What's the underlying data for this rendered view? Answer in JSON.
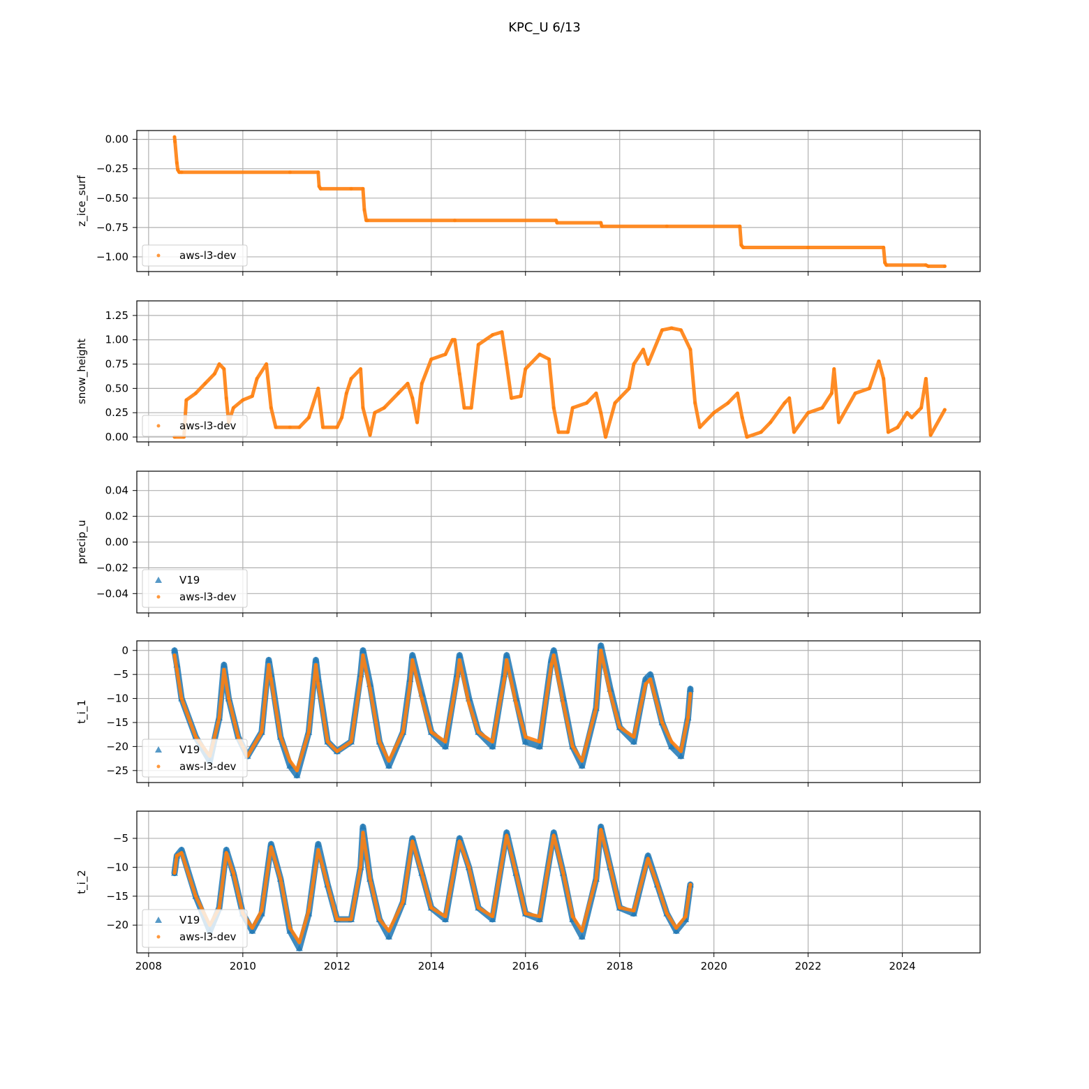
{
  "figure": {
    "title": "KPC_U 6/13",
    "colors": {
      "v19": "#1f77b4",
      "aws": "#ff7f0e",
      "grid": "#b0b0b0",
      "axis": "#000000"
    }
  },
  "chart_data": [
    {
      "type": "scatter",
      "ylabel": "z_ice_surf",
      "xlim": [
        2007.75,
        2025.65
      ],
      "ylim": [
        -1.125,
        0.075
      ],
      "xticks": [
        2008,
        2010,
        2012,
        2014,
        2016,
        2018,
        2020,
        2022,
        2024
      ],
      "xticklabels": [],
      "yticks": [
        -1.0,
        -0.75,
        -0.5,
        -0.25,
        0.0
      ],
      "yticklabels": [
        "−1.00",
        "−0.75",
        "−0.50",
        "−0.25",
        "0.00"
      ],
      "grid": true,
      "legend": {
        "placement": "lower-left",
        "entries": [
          "aws-l3-dev"
        ]
      },
      "series": [
        {
          "name": "aws-l3-dev",
          "marker": "dot",
          "color": "#ff7f0e",
          "x": [
            2008.55,
            2008.56,
            2008.6,
            2008.62,
            2008.65,
            2008.7,
            2011.0,
            2011.6,
            2011.62,
            2011.65,
            2012.3,
            2012.55,
            2012.58,
            2012.62,
            2012.65,
            2014.5,
            2016.65,
            2016.67,
            2017.6,
            2017.62,
            2019.0,
            2020.55,
            2020.58,
            2020.62,
            2022.0,
            2023.6,
            2023.63,
            2023.66,
            2024.5,
            2024.55,
            2024.9
          ],
          "y": [
            0.02,
            -0.02,
            -0.2,
            -0.26,
            -0.28,
            -0.28,
            -0.28,
            -0.28,
            -0.4,
            -0.42,
            -0.42,
            -0.42,
            -0.6,
            -0.69,
            -0.69,
            -0.69,
            -0.69,
            -0.71,
            -0.71,
            -0.74,
            -0.74,
            -0.74,
            -0.9,
            -0.92,
            -0.92,
            -0.92,
            -1.05,
            -1.07,
            -1.07,
            -1.08,
            -1.08
          ]
        }
      ]
    },
    {
      "type": "scatter",
      "ylabel": "snow_height",
      "xlim": [
        2007.75,
        2025.65
      ],
      "ylim": [
        -0.05,
        1.4
      ],
      "xticks": [
        2008,
        2010,
        2012,
        2014,
        2016,
        2018,
        2020,
        2022,
        2024
      ],
      "xticklabels": [],
      "yticks": [
        0.0,
        0.25,
        0.5,
        0.75,
        1.0,
        1.25
      ],
      "yticklabels": [
        "0.00",
        "0.25",
        "0.50",
        "0.75",
        "1.00",
        "1.25"
      ],
      "grid": true,
      "legend": {
        "placement": "lower-left",
        "entries": [
          "aws-l3-dev"
        ]
      },
      "series": [
        {
          "name": "aws-l3-dev",
          "marker": "dot",
          "color": "#ff7f0e",
          "x": [
            2008.55,
            2008.75,
            2008.8,
            2009.0,
            2009.2,
            2009.4,
            2009.5,
            2009.6,
            2009.65,
            2009.7,
            2009.8,
            2010.0,
            2010.2,
            2010.3,
            2010.5,
            2010.6,
            2010.7,
            2011.0,
            2011.2,
            2011.4,
            2011.6,
            2011.7,
            2012.0,
            2012.1,
            2012.2,
            2012.3,
            2012.5,
            2012.55,
            2012.7,
            2012.8,
            2013.0,
            2013.3,
            2013.5,
            2013.6,
            2013.7,
            2013.8,
            2014.0,
            2014.3,
            2014.45,
            2014.5,
            2014.6,
            2014.7,
            2014.85,
            2015.0,
            2015.3,
            2015.5,
            2015.6,
            2015.7,
            2015.9,
            2016.0,
            2016.3,
            2016.5,
            2016.6,
            2016.7,
            2016.9,
            2017.0,
            2017.3,
            2017.5,
            2017.6,
            2017.7,
            2017.9,
            2018.0,
            2018.2,
            2018.3,
            2018.5,
            2018.6,
            2018.9,
            2019.1,
            2019.3,
            2019.5,
            2019.6,
            2019.7,
            2020.0,
            2020.3,
            2020.5,
            2020.6,
            2020.7,
            2021.0,
            2021.2,
            2021.5,
            2021.6,
            2021.7,
            2022.0,
            2022.3,
            2022.5,
            2022.55,
            2022.65,
            2023.0,
            2023.3,
            2023.5,
            2023.6,
            2023.7,
            2023.9,
            2024.1,
            2024.2,
            2024.3,
            2024.4,
            2024.5,
            2024.6,
            2024.9
          ],
          "y": [
            0.0,
            0.0,
            0.38,
            0.45,
            0.55,
            0.65,
            0.75,
            0.7,
            0.4,
            0.15,
            0.3,
            0.38,
            0.42,
            0.6,
            0.75,
            0.3,
            0.1,
            0.1,
            0.1,
            0.2,
            0.5,
            0.1,
            0.1,
            0.2,
            0.45,
            0.6,
            0.7,
            0.3,
            0.02,
            0.25,
            0.3,
            0.45,
            0.55,
            0.4,
            0.15,
            0.55,
            0.8,
            0.85,
            1.0,
            1.0,
            0.65,
            0.3,
            0.3,
            0.95,
            1.05,
            1.08,
            0.75,
            0.4,
            0.42,
            0.7,
            0.85,
            0.8,
            0.3,
            0.05,
            0.05,
            0.3,
            0.35,
            0.45,
            0.25,
            0.0,
            0.35,
            0.4,
            0.5,
            0.75,
            0.9,
            0.75,
            1.1,
            1.12,
            1.1,
            0.9,
            0.35,
            0.1,
            0.25,
            0.35,
            0.45,
            0.2,
            0.0,
            0.05,
            0.15,
            0.35,
            0.4,
            0.05,
            0.25,
            0.3,
            0.45,
            0.7,
            0.15,
            0.45,
            0.5,
            0.78,
            0.6,
            0.05,
            0.1,
            0.25,
            0.2,
            0.25,
            0.3,
            0.6,
            0.02,
            0.28
          ]
        }
      ]
    },
    {
      "type": "scatter",
      "ylabel": "precip_u",
      "xlim": [
        2007.75,
        2025.65
      ],
      "ylim": [
        -0.055,
        0.055
      ],
      "xticks": [
        2008,
        2010,
        2012,
        2014,
        2016,
        2018,
        2020,
        2022,
        2024
      ],
      "xticklabels": [],
      "yticks": [
        -0.04,
        -0.02,
        0.0,
        0.02,
        0.04
      ],
      "yticklabels": [
        "−0.04",
        "−0.02",
        "0.00",
        "0.02",
        "0.04"
      ],
      "grid": true,
      "legend": {
        "placement": "lower-left",
        "entries": [
          "V19",
          "aws-l3-dev"
        ]
      },
      "series": [
        {
          "name": "V19",
          "marker": "triangle",
          "color": "#1f77b4",
          "x": [],
          "y": []
        },
        {
          "name": "aws-l3-dev",
          "marker": "dot",
          "color": "#ff7f0e",
          "x": [],
          "y": []
        }
      ]
    },
    {
      "type": "scatter",
      "ylabel": "t_i_1",
      "xlim": [
        2007.75,
        2025.65
      ],
      "ylim": [
        -27.5,
        2.0
      ],
      "xticks": [
        2008,
        2010,
        2012,
        2014,
        2016,
        2018,
        2020,
        2022,
        2024
      ],
      "xticklabels": [],
      "yticks": [
        -25,
        -20,
        -15,
        -10,
        -5,
        0
      ],
      "yticklabels": [
        "−25",
        "−20",
        "−15",
        "−10",
        "−5",
        "0"
      ],
      "grid": true,
      "legend": {
        "placement": "lower-left",
        "entries": [
          "V19",
          "aws-l3-dev"
        ]
      },
      "series": [
        {
          "name": "V19",
          "marker": "triangle",
          "color": "#1f77b4",
          "x": [
            2008.55,
            2008.6,
            2008.7,
            2009.0,
            2009.3,
            2009.5,
            2009.6,
            2009.7,
            2009.9,
            2010.1,
            2010.4,
            2010.55,
            2010.6,
            2010.8,
            2011.0,
            2011.15,
            2011.4,
            2011.55,
            2011.6,
            2011.8,
            2012.0,
            2012.3,
            2012.5,
            2012.55,
            2012.7,
            2012.9,
            2013.1,
            2013.4,
            2013.55,
            2013.6,
            2013.8,
            2014.0,
            2014.3,
            2014.55,
            2014.6,
            2014.8,
            2015.0,
            2015.3,
            2015.55,
            2015.6,
            2015.8,
            2016.0,
            2016.3,
            2016.55,
            2016.6,
            2016.8,
            2017.0,
            2017.2,
            2017.5,
            2017.6,
            2017.8,
            2018.0,
            2018.3,
            2018.55,
            2018.65,
            2018.9,
            2019.1,
            2019.3,
            2019.45,
            2019.5
          ],
          "y": [
            0,
            -3,
            -10,
            -18,
            -23,
            -14,
            -3,
            -10,
            -18,
            -22,
            -17,
            -2,
            -5,
            -18,
            -24,
            -26,
            -17,
            -2,
            -6,
            -19,
            -21,
            -19,
            -5,
            0,
            -7,
            -19,
            -24,
            -17,
            -6,
            -1,
            -9,
            -17,
            -20,
            -5,
            -1,
            -10,
            -17,
            -20,
            -5,
            -1,
            -10,
            -19,
            -20,
            -2,
            0,
            -10,
            -20,
            -24,
            -12,
            1,
            -8,
            -16,
            -19,
            -6,
            -5,
            -15,
            -20,
            -22,
            -14,
            -8
          ]
        },
        {
          "name": "aws-l3-dev",
          "marker": "dot",
          "color": "#ff7f0e",
          "x": [
            2008.55,
            2008.6,
            2008.7,
            2009.0,
            2009.3,
            2009.5,
            2009.6,
            2009.7,
            2009.9,
            2010.1,
            2010.4,
            2010.55,
            2010.6,
            2010.8,
            2011.0,
            2011.15,
            2011.4,
            2011.55,
            2011.6,
            2011.8,
            2012.0,
            2012.3,
            2012.5,
            2012.55,
            2012.7,
            2012.9,
            2013.1,
            2013.4,
            2013.55,
            2013.6,
            2013.8,
            2014.0,
            2014.3,
            2014.55,
            2014.6,
            2014.8,
            2015.0,
            2015.3,
            2015.55,
            2015.6,
            2015.8,
            2016.0,
            2016.3,
            2016.55,
            2016.6,
            2016.8,
            2017.0,
            2017.2,
            2017.5,
            2017.6,
            2017.8,
            2018.0,
            2018.3,
            2018.55,
            2018.65,
            2018.9,
            2019.1,
            2019.3,
            2019.45,
            2019.5
          ],
          "y": [
            -1,
            -4,
            -10,
            -18,
            -22,
            -14,
            -4,
            -10,
            -18,
            -22,
            -17,
            -3,
            -6,
            -18,
            -23,
            -25,
            -17,
            -3,
            -7,
            -19,
            -21,
            -19,
            -6,
            -1,
            -8,
            -19,
            -23,
            -17,
            -7,
            -2,
            -10,
            -17,
            -19,
            -6,
            -2,
            -11,
            -17,
            -19,
            -6,
            -2,
            -11,
            -18,
            -19,
            -3,
            -1,
            -11,
            -20,
            -23,
            -12,
            0,
            -9,
            -16,
            -18,
            -7,
            -6,
            -15,
            -19,
            -21,
            -14,
            -9
          ]
        }
      ]
    },
    {
      "type": "scatter",
      "ylabel": "t_i_2",
      "xlabel": "",
      "xlim": [
        2007.75,
        2025.65
      ],
      "ylim": [
        -24.8,
        -0.3
      ],
      "xticks": [
        2008,
        2010,
        2012,
        2014,
        2016,
        2018,
        2020,
        2022,
        2024
      ],
      "xticklabels": [
        "2008",
        "2010",
        "2012",
        "2014",
        "2016",
        "2018",
        "2020",
        "2022",
        "2024"
      ],
      "yticks": [
        -20,
        -15,
        -10,
        -5
      ],
      "yticklabels": [
        "−20",
        "−15",
        "−10",
        "−5"
      ],
      "grid": true,
      "legend": {
        "placement": "lower-left",
        "entries": [
          "V19",
          "aws-l3-dev"
        ]
      },
      "series": [
        {
          "name": "V19",
          "marker": "triangle",
          "color": "#1f77b4",
          "x": [
            2008.55,
            2008.6,
            2008.7,
            2009.0,
            2009.3,
            2009.5,
            2009.65,
            2009.8,
            2010.0,
            2010.2,
            2010.4,
            2010.6,
            2010.8,
            2011.0,
            2011.2,
            2011.4,
            2011.6,
            2011.8,
            2012.0,
            2012.3,
            2012.5,
            2012.55,
            2012.7,
            2012.9,
            2013.1,
            2013.4,
            2013.6,
            2013.8,
            2014.0,
            2014.3,
            2014.6,
            2014.8,
            2015.0,
            2015.3,
            2015.6,
            2015.8,
            2016.0,
            2016.3,
            2016.6,
            2016.8,
            2017.0,
            2017.2,
            2017.5,
            2017.6,
            2017.8,
            2018.0,
            2018.3,
            2018.6,
            2018.8,
            2019.0,
            2019.2,
            2019.4,
            2019.5
          ],
          "y": [
            -11,
            -8,
            -7,
            -15,
            -21,
            -17,
            -7,
            -11,
            -18,
            -21,
            -18,
            -6,
            -12,
            -21,
            -24,
            -18,
            -6,
            -13,
            -19,
            -19,
            -10,
            -3,
            -12,
            -19,
            -22,
            -16,
            -5,
            -11,
            -17,
            -19,
            -5,
            -10,
            -17,
            -19,
            -4,
            -11,
            -18,
            -19,
            -4,
            -11,
            -19,
            -22,
            -12,
            -3,
            -10,
            -17,
            -18,
            -8,
            -13,
            -18,
            -21,
            -19,
            -13
          ]
        },
        {
          "name": "aws-l3-dev",
          "marker": "dot",
          "color": "#ff7f0e",
          "x": [
            2008.55,
            2008.6,
            2008.7,
            2009.0,
            2009.3,
            2009.5,
            2009.65,
            2009.8,
            2010.0,
            2010.2,
            2010.4,
            2010.6,
            2010.8,
            2011.0,
            2011.2,
            2011.4,
            2011.6,
            2011.8,
            2012.0,
            2012.3,
            2012.5,
            2012.55,
            2012.7,
            2012.9,
            2013.1,
            2013.4,
            2013.6,
            2013.8,
            2014.0,
            2014.3,
            2014.6,
            2014.8,
            2015.0,
            2015.3,
            2015.6,
            2015.8,
            2016.0,
            2016.3,
            2016.6,
            2016.8,
            2017.0,
            2017.2,
            2017.5,
            2017.6,
            2017.8,
            2018.0,
            2018.3,
            2018.6,
            2018.8,
            2019.0,
            2019.2,
            2019.4,
            2019.5
          ],
          "y": [
            -11,
            -8,
            -7.5,
            -15,
            -20,
            -17,
            -7.5,
            -11,
            -18,
            -20.5,
            -17.5,
            -6.5,
            -12,
            -20.5,
            -23,
            -17.5,
            -7,
            -13,
            -19,
            -19,
            -10,
            -4,
            -12,
            -19,
            -21,
            -16,
            -5.5,
            -11,
            -17,
            -18.5,
            -5.5,
            -10,
            -17,
            -18.5,
            -4.5,
            -11,
            -18,
            -18.5,
            -4.5,
            -11,
            -18.5,
            -21,
            -12,
            -3.5,
            -10,
            -17,
            -17.5,
            -8.5,
            -13,
            -18,
            -20.5,
            -18.5,
            -13
          ]
        }
      ]
    }
  ]
}
